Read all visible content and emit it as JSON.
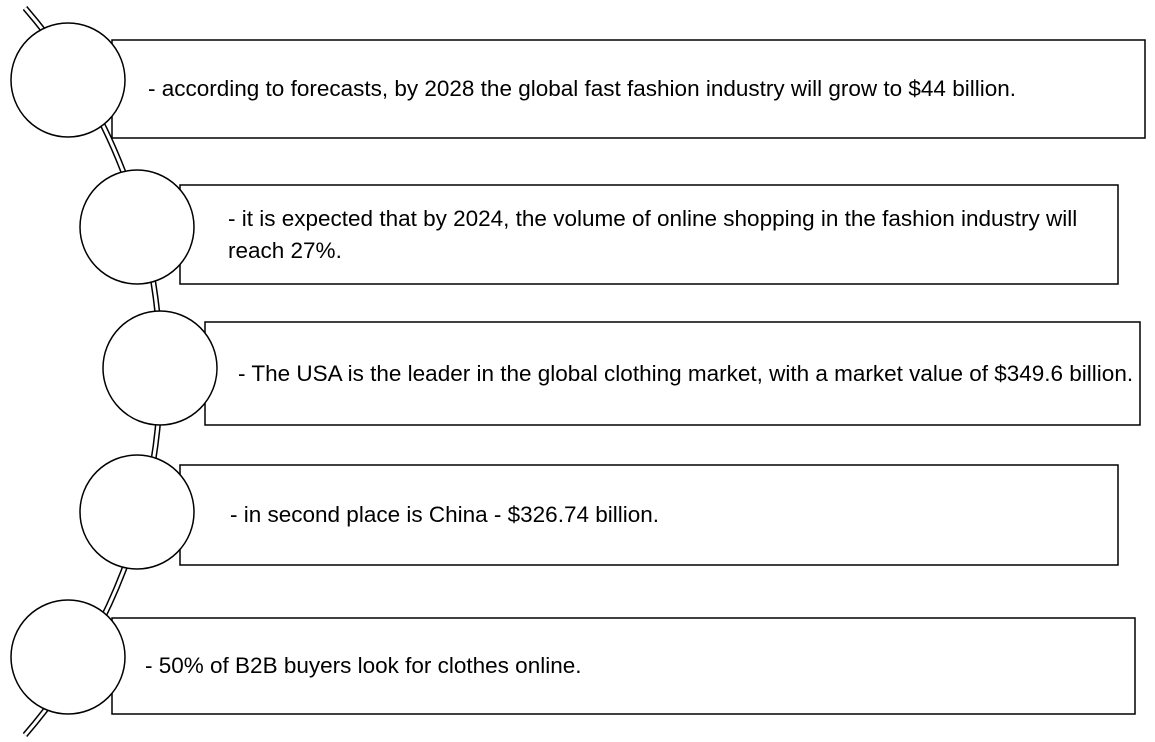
{
  "items": [
    {
      "text": "- according to forecasts, by 2028 the global fast fashion industry will grow to $44 billion."
    },
    {
      "text": "- it is expected that by 2024, the volume of online shopping in the fashion industry will reach 27%."
    },
    {
      "text": "- The USA is the leader in the global clothing market, with a market value of $349.6 billion."
    },
    {
      "text": "- in second place is China - $326.74 billion."
    },
    {
      "text": "- 50% of B2B buyers look for clothes online."
    }
  ]
}
